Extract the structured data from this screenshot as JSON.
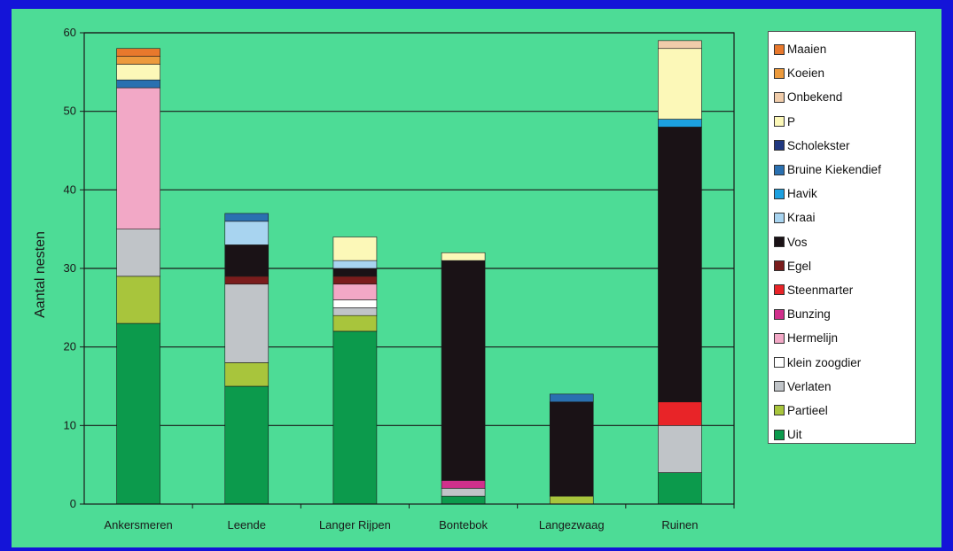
{
  "chart_data": {
    "type": "bar",
    "stacked": true,
    "title": "",
    "xlabel": "",
    "ylabel": "Aantal nesten",
    "ylim": [
      0,
      60
    ],
    "yticks": [
      0,
      10,
      20,
      30,
      40,
      50,
      60
    ],
    "grid": "horizontal",
    "legend_position": "right",
    "categories": [
      "Ankersmeren",
      "Leende",
      "Langer Rijpen",
      "Bontebok",
      "Langezwaag",
      "Ruinen"
    ],
    "series": [
      {
        "name": "Uit",
        "color": "#0c9a4c",
        "values": [
          23,
          15,
          22,
          1,
          0,
          4
        ]
      },
      {
        "name": "Partieel",
        "color": "#a8c53c",
        "values": [
          6,
          3,
          2,
          0,
          1,
          0
        ]
      },
      {
        "name": "Verlaten",
        "color": "#c0c4c8",
        "values": [
          6,
          10,
          1,
          1,
          0,
          6
        ]
      },
      {
        "name": "klein zoogdier",
        "color": "#ffffff",
        "values": [
          0,
          0,
          1,
          0,
          0,
          0
        ]
      },
      {
        "name": "Hermelijn",
        "color": "#f2a8c6",
        "values": [
          18,
          0,
          2,
          0,
          0,
          0
        ]
      },
      {
        "name": "Bunzing",
        "color": "#d0308c",
        "values": [
          0,
          0,
          0,
          1,
          0,
          0
        ]
      },
      {
        "name": "Steenmarter",
        "color": "#e82428",
        "values": [
          0,
          0,
          0,
          0,
          0,
          3
        ]
      },
      {
        "name": "Egel",
        "color": "#7a1c1c",
        "values": [
          0,
          1,
          1,
          0,
          0,
          0
        ]
      },
      {
        "name": "Vos",
        "color": "#1a1216",
        "values": [
          0,
          4,
          1,
          28,
          12,
          35
        ]
      },
      {
        "name": "Kraai",
        "color": "#a8d4f0",
        "values": [
          0,
          3,
          1,
          0,
          0,
          0
        ]
      },
      {
        "name": "Havik",
        "color": "#1ca0e0",
        "values": [
          0,
          0,
          0,
          0,
          0,
          1
        ]
      },
      {
        "name": "Bruine Kiekendief",
        "color": "#2a70b0",
        "values": [
          1,
          1,
          0,
          0,
          1,
          0
        ]
      },
      {
        "name": "Scholekster",
        "color": "#203880",
        "values": [
          0,
          0,
          0,
          0,
          0,
          0
        ]
      },
      {
        "name": "P",
        "color": "#fcf8b8",
        "values": [
          2,
          0,
          3,
          1,
          0,
          9
        ]
      },
      {
        "name": "Onbekend",
        "color": "#f0ccaa",
        "values": [
          0,
          0,
          0,
          0,
          0,
          1
        ]
      },
      {
        "name": "Koeien",
        "color": "#ec9a3c",
        "values": [
          1,
          0,
          0,
          0,
          0,
          0
        ]
      },
      {
        "name": "Maaien",
        "color": "#e8782c",
        "values": [
          1,
          0,
          0,
          0,
          0,
          0
        ]
      }
    ]
  },
  "colors": {
    "background": "#1414d8",
    "plot_background": "#4ddc96",
    "axis": "#1a1a1a"
  }
}
